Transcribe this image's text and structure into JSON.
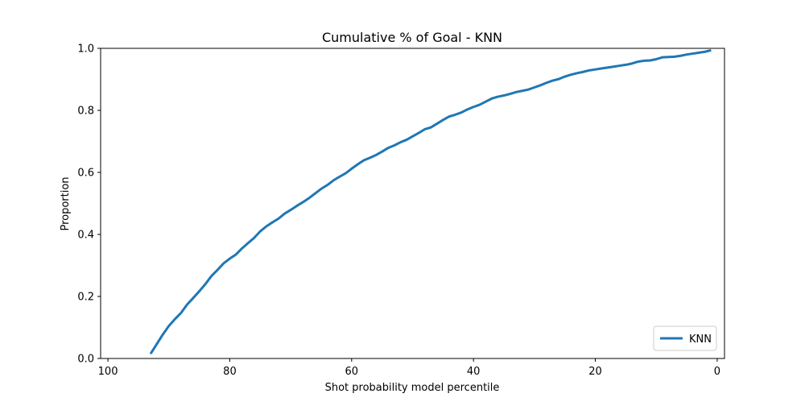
{
  "chart_data": {
    "type": "line",
    "title": "Cumulative % of Goal - KNN",
    "xlabel": "Shot probability model percentile",
    "ylabel": "Proportion",
    "xlim": [
      101.2,
      -1.2
    ],
    "ylim": [
      0.0,
      1.0
    ],
    "x_inverted": true,
    "xticks": [
      100,
      80,
      60,
      40,
      20,
      0
    ],
    "xtick_labels": [
      "100",
      "80",
      "60",
      "40",
      "20",
      "0"
    ],
    "yticks": [
      0.0,
      0.2,
      0.4,
      0.6,
      0.8,
      1.0
    ],
    "ytick_labels": [
      "0.0",
      "0.2",
      "0.4",
      "0.6",
      "0.8",
      "1.0"
    ],
    "grid": false,
    "legend_position": "lower right",
    "series": [
      {
        "name": "KNN",
        "color": "#1f77b4",
        "x": [
          93,
          92,
          91,
          90,
          89,
          88,
          87,
          86,
          85,
          84,
          83,
          82,
          81,
          80,
          79,
          78,
          77,
          76,
          75,
          74,
          73,
          72,
          71,
          70,
          69,
          68,
          67,
          66,
          65,
          64,
          63,
          62,
          61,
          60,
          59,
          58,
          57,
          56,
          55,
          54,
          53,
          52,
          51,
          50,
          49,
          48,
          47,
          46,
          45,
          44,
          43,
          42,
          41,
          40,
          39,
          38,
          37,
          36,
          35,
          34,
          33,
          32,
          31,
          30,
          29,
          28,
          27,
          26,
          25,
          24,
          23,
          22,
          21,
          20,
          19,
          18,
          17,
          16,
          15,
          14,
          13,
          12,
          11,
          10,
          9,
          8,
          7,
          6,
          5,
          4,
          3,
          2,
          1
        ],
        "y": [
          0.015,
          0.046,
          0.077,
          0.105,
          0.127,
          0.147,
          0.174,
          0.195,
          0.217,
          0.24,
          0.266,
          0.286,
          0.307,
          0.322,
          0.335,
          0.355,
          0.372,
          0.389,
          0.41,
          0.426,
          0.439,
          0.451,
          0.467,
          0.479,
          0.492,
          0.504,
          0.517,
          0.532,
          0.547,
          0.559,
          0.574,
          0.586,
          0.597,
          0.612,
          0.626,
          0.639,
          0.647,
          0.656,
          0.667,
          0.679,
          0.687,
          0.697,
          0.705,
          0.716,
          0.727,
          0.739,
          0.745,
          0.757,
          0.769,
          0.78,
          0.786,
          0.793,
          0.803,
          0.811,
          0.818,
          0.828,
          0.838,
          0.844,
          0.848,
          0.853,
          0.859,
          0.863,
          0.867,
          0.874,
          0.881,
          0.889,
          0.896,
          0.901,
          0.909,
          0.915,
          0.92,
          0.924,
          0.929,
          0.932,
          0.935,
          0.938,
          0.941,
          0.944,
          0.947,
          0.951,
          0.957,
          0.96,
          0.961,
          0.965,
          0.971,
          0.972,
          0.973,
          0.976,
          0.98,
          0.983,
          0.986,
          0.989,
          0.994
        ]
      }
    ]
  }
}
